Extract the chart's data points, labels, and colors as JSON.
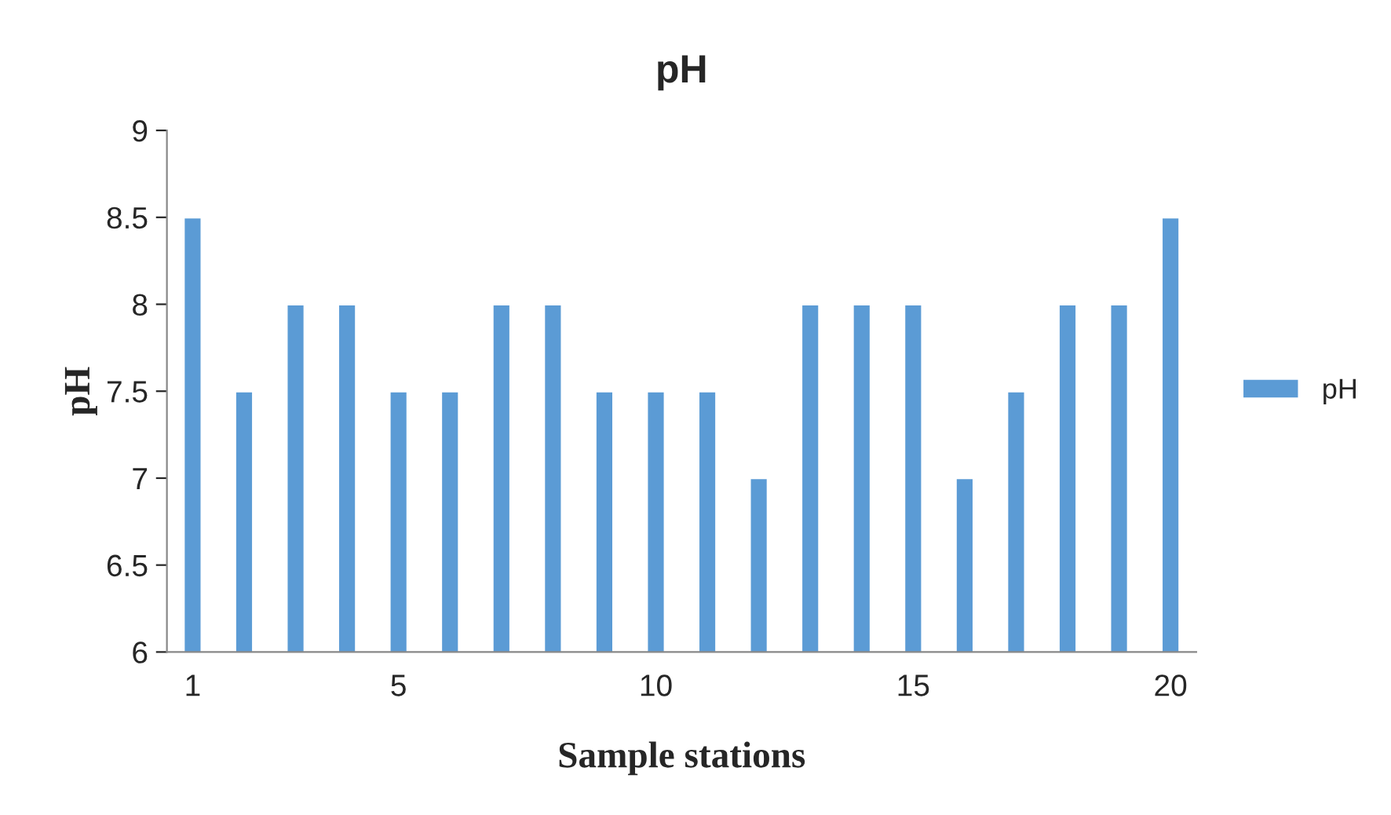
{
  "chart_data": {
    "type": "bar",
    "title": "pH",
    "xlabel": "Sample stations",
    "ylabel": "pH",
    "categories": [
      "1",
      null,
      null,
      null,
      "5",
      null,
      null,
      null,
      null,
      "10",
      null,
      null,
      null,
      null,
      "15",
      null,
      null,
      null,
      null,
      "20"
    ],
    "series": [
      {
        "name": "pH",
        "color": "#5b9bd5",
        "values": [
          8.5,
          7.5,
          8,
          8,
          7.5,
          7.5,
          8,
          8,
          7.5,
          7.5,
          7.5,
          7,
          8,
          8,
          8,
          7,
          7.5,
          8,
          8,
          8.5
        ]
      }
    ],
    "ylim": [
      6,
      9
    ],
    "yticks": [
      6,
      6.5,
      7,
      7.5,
      8,
      8.5,
      9
    ],
    "grid": false,
    "legend": "right"
  }
}
